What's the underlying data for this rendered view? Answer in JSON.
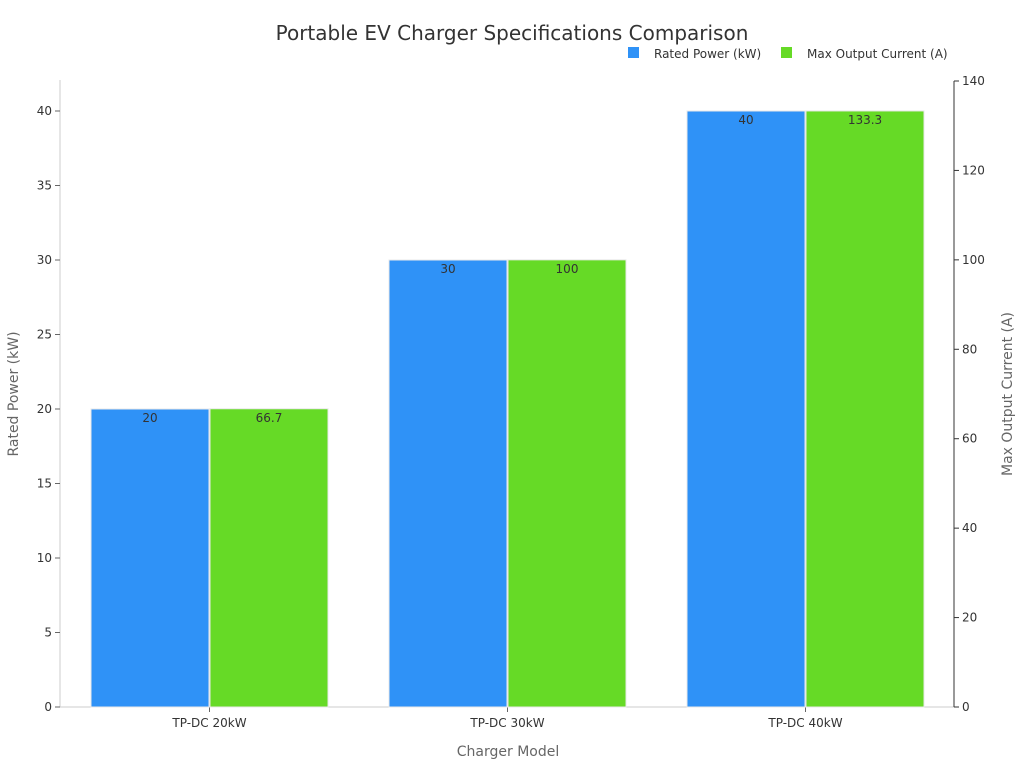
{
  "chart_data": {
    "type": "bar",
    "title": "Portable EV Charger Specifications Comparison",
    "xlabel": "Charger Model",
    "ylabel": "Rated Power (kW)",
    "y2label": "Max Output Current (A)",
    "categories": [
      "TP-DC 20kW",
      "TP-DC 30kW",
      "TP-DC 40kW"
    ],
    "series": [
      {
        "name": "Rated Power (kW)",
        "axis": "left",
        "color": "#2f92f7",
        "values": [
          20,
          30,
          40
        ],
        "labels": [
          "20",
          "30",
          "40"
        ]
      },
      {
        "name": "Max Output Current (A)",
        "axis": "right",
        "color": "#66da26",
        "values": [
          66.7,
          100,
          133.3
        ],
        "labels": [
          "66.7",
          "100",
          "133.3"
        ]
      }
    ],
    "ylim": [
      0,
      42
    ],
    "y2lim": [
      0,
      140
    ],
    "yticks": [
      0,
      5,
      10,
      15,
      20,
      25,
      30,
      35,
      40
    ],
    "y2ticks": [
      0,
      20,
      40,
      60,
      80,
      100,
      120,
      140
    ],
    "grid": false,
    "legend_position": "top-right"
  }
}
